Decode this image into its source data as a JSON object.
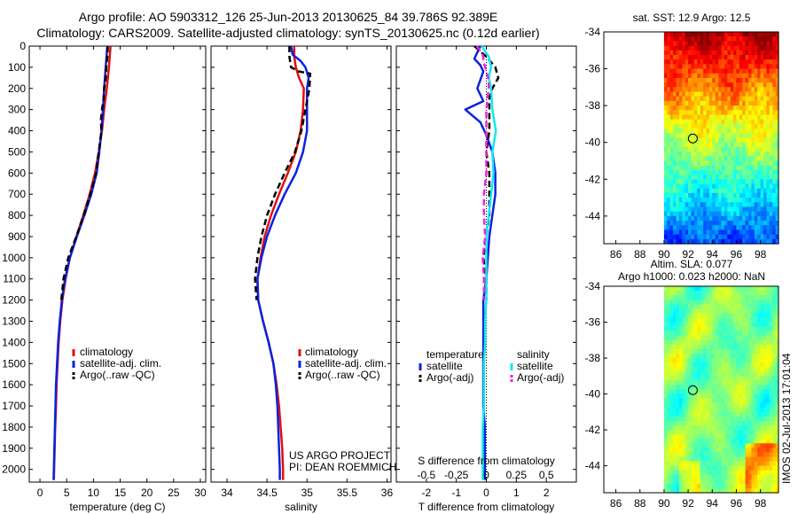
{
  "header": {
    "title_line1": "Argo profile: AO 5903312_126 25-Jun-2013 20130625_84 39.786S 92.389E",
    "title_line2": "Climatology: CARS2009. Satellite-adjusted climatology: synTS_20130625.nc (0.12d earlier)"
  },
  "colors": {
    "climatology": "#e01010",
    "satellite": "#0a22e0",
    "argo": "#000000",
    "salinity_satellite": "#11e8f0",
    "salinity_argo": "#f020e0",
    "marker": "#000000"
  },
  "credits": {
    "project": "US ARGO PROJECT",
    "pi": "PI: DEAN ROEMMICH",
    "stamp": "IMOS 02-Jul-2013 17:01:04"
  },
  "chart_data": [
    {
      "id": "temperature",
      "type": "line",
      "xlabel": "temperature (deg C)",
      "ylabel": "",
      "xlim": [
        -2,
        31
      ],
      "ylim": [
        2060,
        0
      ],
      "xticks": [
        0,
        5,
        10,
        15,
        20,
        25,
        30
      ],
      "xtick_labels": [
        "0",
        "5",
        "10",
        "15",
        "20",
        "25",
        "30"
      ],
      "yticks": [
        0,
        100,
        200,
        300,
        400,
        500,
        600,
        700,
        800,
        900,
        1000,
        1100,
        1200,
        1300,
        1400,
        1500,
        1600,
        1700,
        1800,
        1900,
        2000
      ],
      "ytick_labels": [
        "0",
        "100",
        "200",
        "300",
        "400",
        "500",
        "600",
        "700",
        "800",
        "900",
        "1000",
        "1100",
        "1200",
        "1300",
        "1400",
        "1500",
        "1600",
        "1700",
        "1800",
        "1900",
        "2000"
      ],
      "legend": {
        "position": "lower-left",
        "entries": [
          "climatology",
          "satellite-adj. clim.",
          "Argo(..raw -QC)"
        ]
      },
      "series": [
        {
          "name": "climatology",
          "color": "#e01010",
          "style": "solid",
          "depth": [
            0,
            100,
            200,
            300,
            400,
            500,
            600,
            700,
            800,
            900,
            1000,
            1100,
            1200,
            1300,
            1400,
            1500,
            1600,
            1700,
            1800,
            1900,
            2000,
            2050
          ],
          "values": [
            13.2,
            12.9,
            12.5,
            12.0,
            11.6,
            11.0,
            10.3,
            9.3,
            8.1,
            6.8,
            5.6,
            4.8,
            4.2,
            3.8,
            3.5,
            3.3,
            3.1,
            3.0,
            2.85,
            2.75,
            2.65,
            2.6
          ]
        },
        {
          "name": "satellite-adj. clim.",
          "color": "#0a22e0",
          "style": "solid",
          "depth": [
            0,
            100,
            200,
            300,
            400,
            500,
            600,
            700,
            800,
            900,
            1000,
            1100,
            1200,
            1300,
            1400,
            1500,
            1600,
            1700,
            1800,
            1900,
            2000,
            2050
          ],
          "values": [
            12.6,
            12.3,
            12.0,
            11.8,
            11.5,
            11.1,
            10.6,
            9.6,
            8.3,
            6.9,
            5.6,
            4.7,
            4.1,
            3.7,
            3.4,
            3.2,
            3.0,
            2.9,
            2.8,
            2.7,
            2.6,
            2.55
          ]
        },
        {
          "name": "Argo(..raw -QC)",
          "color": "#000000",
          "style": "dash",
          "depth": [
            0,
            50,
            100,
            150,
            200,
            250,
            300,
            350,
            400,
            500,
            600,
            700,
            800,
            900,
            1000,
            1100,
            1200
          ],
          "values": [
            12.7,
            12.6,
            12.4,
            12.3,
            12.0,
            11.9,
            11.6,
            11.4,
            11.5,
            11.0,
            10.5,
            9.4,
            8.2,
            6.8,
            5.3,
            4.4,
            4.0
          ]
        }
      ]
    },
    {
      "id": "salinity",
      "type": "line",
      "xlabel": "salinity",
      "ylabel": "",
      "xlim": [
        33.8,
        36.05
      ],
      "ylim": [
        2060,
        0
      ],
      "xticks": [
        34,
        34.5,
        35,
        35.5,
        36
      ],
      "xtick_labels": [
        "34",
        "34.5",
        "35",
        "35.5",
        "36"
      ],
      "legend": {
        "position": "lower-right",
        "entries": [
          "climatology",
          "satellite-adj. clim.",
          "Argo(..raw -QC)"
        ]
      },
      "series": [
        {
          "name": "climatology",
          "color": "#e01010",
          "style": "solid",
          "depth": [
            0,
            50,
            100,
            150,
            200,
            300,
            400,
            500,
            600,
            700,
            800,
            900,
            1000,
            1100,
            1200,
            1300,
            1400,
            1500,
            1600,
            1700,
            1800,
            1900,
            2000,
            2050
          ],
          "values": [
            34.84,
            34.84,
            34.86,
            34.9,
            34.96,
            34.95,
            34.92,
            34.86,
            34.76,
            34.65,
            34.55,
            34.47,
            34.42,
            34.38,
            34.39,
            34.45,
            34.52,
            34.58,
            34.62,
            34.65,
            34.67,
            34.69,
            34.7,
            34.7
          ]
        },
        {
          "name": "satellite-adj. clim.",
          "color": "#0a22e0",
          "style": "solid",
          "depth": [
            0,
            40,
            70,
            100,
            150,
            200,
            300,
            400,
            500,
            600,
            700,
            800,
            900,
            1000,
            1100,
            1200,
            1300,
            1400,
            1500,
            1600,
            1700,
            1800,
            1900,
            2000,
            2050
          ],
          "values": [
            34.8,
            34.82,
            34.92,
            34.98,
            35.02,
            35.0,
            35.0,
            35.0,
            34.95,
            34.86,
            34.72,
            34.6,
            34.5,
            34.43,
            34.38,
            34.39,
            34.45,
            34.52,
            34.58,
            34.61,
            34.63,
            34.64,
            34.65,
            34.66,
            34.66
          ]
        },
        {
          "name": "Argo(..raw -QC)",
          "color": "#000000",
          "style": "dash",
          "depth": [
            0,
            50,
            100,
            120,
            130,
            200,
            300,
            400,
            500,
            600,
            700,
            800,
            900,
            1000,
            1100,
            1200
          ],
          "values": [
            34.78,
            34.78,
            34.8,
            34.9,
            35.04,
            35.03,
            34.98,
            34.93,
            34.85,
            34.72,
            34.6,
            34.5,
            34.43,
            34.38,
            34.35,
            34.37
          ]
        }
      ]
    },
    {
      "id": "difference",
      "type": "line",
      "xlabel": "T difference from climatology",
      "xlabel_top": "S difference from climatology",
      "xlim": [
        -3,
        3
      ],
      "ylim": [
        2060,
        0
      ],
      "xticks": [
        -2,
        -1,
        0,
        1,
        2
      ],
      "xtick_labels": [
        "-2",
        "-1",
        "0",
        "1",
        "2"
      ],
      "s_ticks": [
        -0.5,
        -0.25,
        0,
        0.25,
        0.5
      ],
      "s_tick_labels": [
        "-0.5",
        "-0.25",
        "0",
        "0.25",
        "0.5"
      ],
      "legend": {
        "position": "lower",
        "temperature_title": "temperature",
        "salinity_title": "salinity",
        "temperature_entries": [
          "satellite",
          "Argo(-adj)"
        ],
        "salinity_entries": [
          "satellite",
          "Argo(-adj)"
        ]
      },
      "series": [
        {
          "name": "temperature satellite",
          "color": "#0a22e0",
          "style": "solid",
          "depth": [
            0,
            30,
            60,
            90,
            120,
            160,
            200,
            260,
            300,
            360,
            420,
            500,
            600,
            700,
            800,
            900,
            1000,
            1100,
            1200,
            1300,
            1400,
            1500,
            1600,
            1700,
            1800,
            1900,
            2000,
            2050
          ],
          "values": [
            -0.2,
            -0.3,
            -0.4,
            -0.2,
            -0.1,
            -0.2,
            -0.3,
            -0.1,
            -0.7,
            -0.2,
            0.0,
            0.2,
            0.3,
            0.3,
            0.2,
            0.1,
            0.05,
            0.0,
            -0.1,
            -0.1,
            -0.1,
            -0.1,
            -0.1,
            -0.1,
            -0.05,
            -0.05,
            -0.05,
            -0.05
          ]
        },
        {
          "name": "temperature Argo(-adj)",
          "color": "#000000",
          "style": "dash",
          "depth": [
            0,
            50,
            100,
            150,
            200,
            250,
            300,
            400,
            500,
            600,
            700,
            800,
            900,
            1000,
            1100,
            1200
          ],
          "values": [
            -0.4,
            0.0,
            0.3,
            0.4,
            0.2,
            0.1,
            0.1,
            0.1,
            0.0,
            0.1,
            0.1,
            0.1,
            0.0,
            -0.1,
            0.0,
            0.0
          ]
        },
        {
          "name": "salinity satellite",
          "color": "#11e8f0",
          "style": "solid",
          "depth": [
            0,
            50,
            100,
            150,
            200,
            300,
            400,
            500,
            600,
            700,
            800,
            900,
            1000,
            1100,
            1200,
            1300,
            1400,
            1500,
            1600,
            1700,
            1800,
            1900,
            2000,
            2050
          ],
          "values": [
            -0.04,
            0.02,
            0.04,
            0.02,
            0.04,
            0.05,
            0.08,
            0.05,
            0.06,
            0.04,
            0.02,
            0.0,
            0.0,
            0.0,
            0.0,
            -0.01,
            -0.01,
            -0.02,
            -0.02,
            -0.02,
            -0.03,
            -0.03,
            -0.03,
            -0.03
          ]
        },
        {
          "name": "salinity Argo(-adj)",
          "color": "#f020e0",
          "style": "dash",
          "depth": [
            0,
            40,
            80,
            120,
            160,
            200,
            300,
            400,
            500,
            600,
            700,
            800,
            900,
            1000,
            1100,
            1200
          ],
          "values": [
            -0.08,
            -0.03,
            -0.02,
            0.0,
            0.02,
            0.02,
            0.0,
            0.0,
            0.0,
            0.0,
            -0.02,
            -0.02,
            -0.01,
            -0.03,
            -0.02,
            -0.02
          ]
        }
      ]
    },
    {
      "id": "sst_map",
      "type": "heatmap",
      "title": "sat. SST: 12.9  Argo: 12.5",
      "xlim": [
        85,
        99.5
      ],
      "ylim": [
        -45.5,
        -34
      ],
      "data_xlim": [
        90,
        99.5
      ],
      "xticks": [
        86,
        88,
        90,
        92,
        94,
        96,
        98
      ],
      "xtick_labels": [
        "86",
        "88",
        "90",
        "92",
        "94",
        "96",
        "98"
      ],
      "yticks": [
        -34,
        -36,
        -38,
        -40,
        -42,
        -44
      ],
      "ytick_labels": [
        "-34",
        "-36",
        "-38",
        "-40",
        "-42",
        "-44"
      ],
      "marker": {
        "lon": 92.389,
        "lat": -39.786
      },
      "field": "sea surface temperature: warm north (red/orange) to cool south (blue)"
    },
    {
      "id": "sla_map",
      "type": "heatmap",
      "title": "Altim. SLA: 0.077",
      "subtitle": "Argo h1000: 0.023  h2000: NaN",
      "xlim": [
        85,
        99.5
      ],
      "ylim": [
        -45.5,
        -34
      ],
      "data_xlim": [
        90,
        99.5
      ],
      "xticks": [
        86,
        88,
        90,
        92,
        94,
        96,
        98
      ],
      "xtick_labels": [
        "86",
        "88",
        "90",
        "92",
        "94",
        "96",
        "98"
      ],
      "yticks": [
        -34,
        -36,
        -38,
        -40,
        -42,
        -44
      ],
      "ytick_labels": [
        "-34",
        "-36",
        "-38",
        "-40",
        "-42",
        "-44"
      ],
      "marker": {
        "lon": 92.389,
        "lat": -39.786
      },
      "field": "sea level anomaly: mostly green with patches of yellow/orange"
    }
  ]
}
